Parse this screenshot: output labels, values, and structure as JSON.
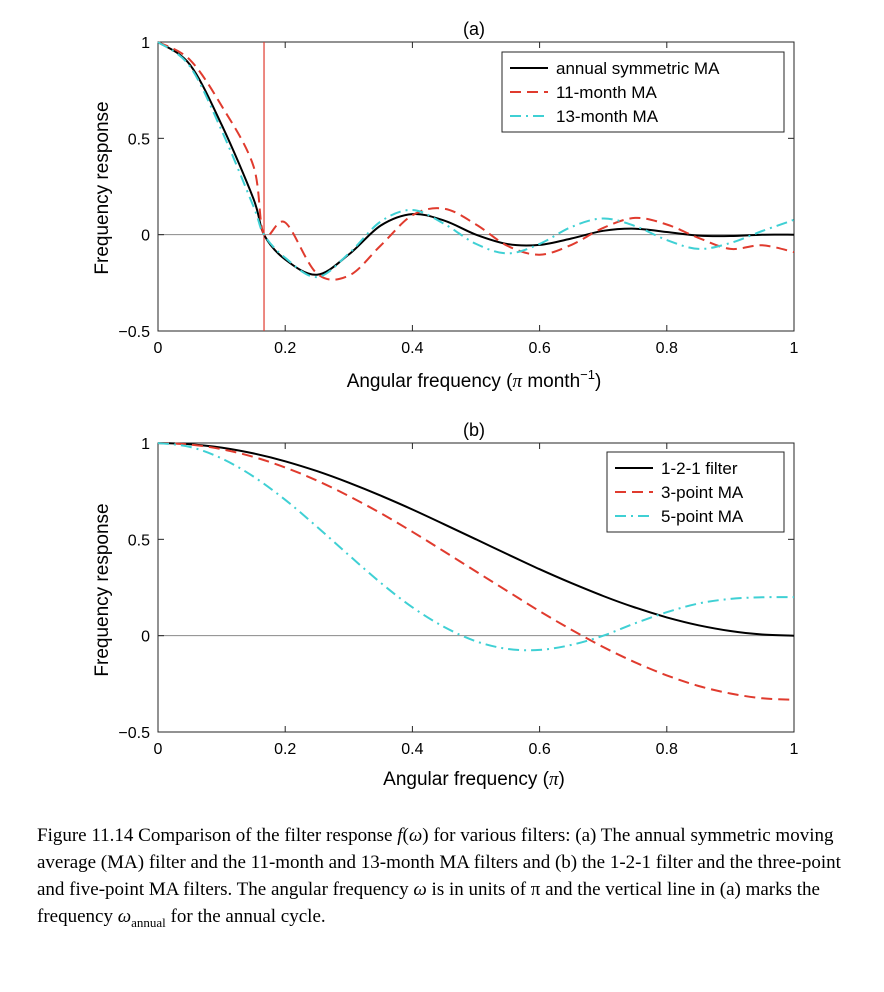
{
  "chart_data": [
    {
      "type": "line",
      "title": "(a)",
      "xlabel_prefix": "Angular frequency  (",
      "xlabel_pi": "π",
      "xlabel_unit": " month",
      "xlabel_exp": "−1",
      "xlabel_close": ")",
      "ylabel": "Frequency response",
      "xlim": [
        0,
        1
      ],
      "ylim": [
        -0.5,
        1
      ],
      "xticks": [
        "0",
        "0.2",
        "0.4",
        "0.6",
        "0.8",
        "1"
      ],
      "yticks": [
        "−0.5",
        "0",
        "0.5",
        "1"
      ],
      "x": [
        0,
        0.05,
        0.1,
        0.15,
        0.1667,
        0.2,
        0.25,
        0.3,
        0.35,
        0.4,
        0.45,
        0.5,
        0.55,
        0.6,
        0.65,
        0.7,
        0.75,
        0.8,
        0.85,
        0.9,
        0.95,
        1.0
      ],
      "series": [
        {
          "name": "annual symmetric MA",
          "color": "#000000",
          "dash": "solid",
          "values": [
            1.0,
            0.883,
            0.571,
            0.187,
            0.0,
            -0.129,
            -0.208,
            -0.103,
            0.047,
            0.107,
            0.073,
            0.0,
            -0.049,
            -0.053,
            -0.02,
            0.02,
            0.031,
            0.014,
            -0.005,
            -0.007,
            0.0,
            0.0
          ]
        },
        {
          "name": "11-month MA",
          "color": "#e03b2e",
          "dash": "dashed",
          "values": [
            1.0,
            0.908,
            0.669,
            0.357,
            0.0,
            0.063,
            -0.202,
            -0.213,
            -0.057,
            0.101,
            0.135,
            0.053,
            -0.059,
            -0.104,
            -0.053,
            0.035,
            0.087,
            0.053,
            -0.017,
            -0.074,
            -0.055,
            -0.091
          ]
        },
        {
          "name": "13-month MA",
          "color": "#3fd0d4",
          "dash": "dashdot",
          "values": [
            1.0,
            0.874,
            0.541,
            0.147,
            0.0,
            -0.12,
            -0.22,
            -0.098,
            0.068,
            0.128,
            0.056,
            -0.048,
            -0.097,
            -0.048,
            0.04,
            0.084,
            0.045,
            -0.028,
            -0.074,
            -0.043,
            0.019,
            0.077
          ]
        }
      ],
      "vline": {
        "x": 0.1667,
        "color": "#e03b2e"
      },
      "legend": "top-right"
    },
    {
      "type": "line",
      "title": "(b)",
      "xlabel_prefix": "Angular frequency (",
      "xlabel_pi": "π",
      "xlabel_unit": "",
      "xlabel_exp": "",
      "xlabel_close": ")",
      "ylabel": "Frequency response",
      "xlim": [
        0,
        1
      ],
      "ylim": [
        -0.5,
        1
      ],
      "xticks": [
        "0",
        "0.2",
        "0.4",
        "0.6",
        "0.8",
        "1"
      ],
      "yticks": [
        "−0.5",
        "0",
        "0.5",
        "1"
      ],
      "x": [
        0,
        0.05,
        0.1,
        0.15,
        0.2,
        0.25,
        0.3,
        0.35,
        0.4,
        0.45,
        0.5,
        0.55,
        0.6,
        0.65,
        0.7,
        0.75,
        0.8,
        0.85,
        0.9,
        0.95,
        1.0
      ],
      "series": [
        {
          "name": "1-2-1 filter",
          "color": "#000000",
          "dash": "solid",
          "values": [
            1.0,
            0.994,
            0.976,
            0.946,
            0.905,
            0.854,
            0.794,
            0.727,
            0.655,
            0.578,
            0.5,
            0.422,
            0.345,
            0.273,
            0.206,
            0.146,
            0.095,
            0.054,
            0.024,
            0.006,
            0.0
          ]
        },
        {
          "name": "3-point MA",
          "color": "#e03b2e",
          "dash": "dashed",
          "values": [
            1.0,
            0.992,
            0.968,
            0.928,
            0.873,
            0.805,
            0.725,
            0.636,
            0.539,
            0.437,
            0.333,
            0.23,
            0.127,
            0.031,
            -0.059,
            -0.138,
            -0.206,
            -0.261,
            -0.3,
            -0.325,
            -0.333
          ]
        },
        {
          "name": "5-point MA",
          "color": "#3fd0d4",
          "dash": "dashdot",
          "values": [
            1.0,
            0.98,
            0.92,
            0.826,
            0.705,
            0.565,
            0.418,
            0.275,
            0.147,
            0.045,
            -0.029,
            -0.069,
            -0.074,
            -0.048,
            0.0,
            0.064,
            0.122,
            0.167,
            0.191,
            0.199,
            0.2
          ]
        }
      ],
      "legend": "top-right"
    }
  ],
  "caption": {
    "lead": "Figure 11.14 Comparison of the filter response ",
    "f": "f",
    "paren_open": "(",
    "omega": "ω",
    "paren_close": ")",
    "mid": " for various filters: (a) The annual symmetric moving average (MA) filter and the 11-month and 13-month MA filters and (b) the 1-2-1 filter and the three-point and five-point MA filters. The angular frequency ",
    "omega2": "ω",
    "mid2": " is in units of π and the vertical line in (a) marks the frequency ",
    "omega3": "ω",
    "sub": "annual",
    "tail": " for the annual cycle."
  }
}
